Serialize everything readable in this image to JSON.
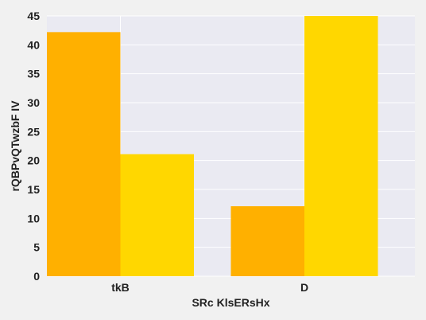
{
  "chart_data": {
    "type": "bar",
    "categories": [
      "tkB",
      "D"
    ],
    "series": [
      {
        "values": [
          42.2,
          12.1
        ],
        "color": "#ffb000"
      },
      {
        "values": [
          21.1,
          45.0
        ],
        "color": "#ffd700"
      }
    ],
    "xlabel": "SRc KlsERsHx",
    "ylabel": "rQBPvQTwzbF IV",
    "ylim": [
      0,
      45
    ],
    "yticks": [
      0,
      5,
      10,
      15,
      20,
      25,
      30,
      35,
      40,
      45
    ],
    "grid": true,
    "background": "#eaeaf2",
    "grid_color": "#ffffff"
  }
}
